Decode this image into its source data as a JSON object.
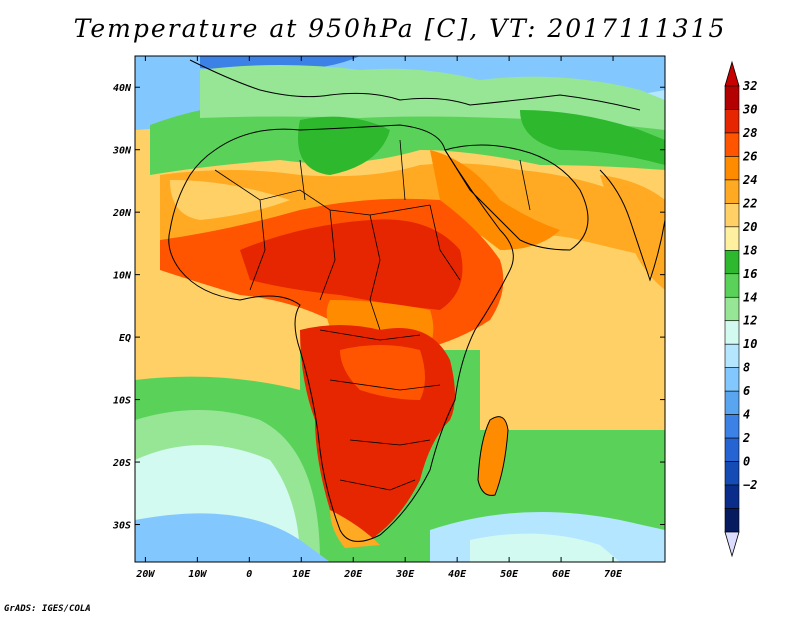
{
  "title": "Temperature at 950hPa [C], VT: 2017111315",
  "footer": "GrADS: IGES/COLA",
  "map": {
    "region": "Africa",
    "lon_range": [
      -22,
      80
    ],
    "lat_range": [
      -36,
      45
    ],
    "x_ticks": [
      "20W",
      "10W",
      "0",
      "10E",
      "20E",
      "30E",
      "40E",
      "50E",
      "60E",
      "70E"
    ],
    "y_ticks": [
      "40N",
      "30N",
      "20N",
      "10N",
      "EQ",
      "10S",
      "20S",
      "30S"
    ]
  },
  "colorbar": {
    "labels": [
      "32",
      "30",
      "28",
      "26",
      "24",
      "22",
      "20",
      "18",
      "16",
      "14",
      "12",
      "10",
      "8",
      "6",
      "4",
      "2",
      "0",
      "−2"
    ],
    "colors": [
      "#b30000",
      "#e62600",
      "#ff5500",
      "#ff8c00",
      "#ffaa22",
      "#ffd066",
      "#fff0a0",
      "#2db82d",
      "#5ad25a",
      "#96e696",
      "#d2faf0",
      "#b4e6ff",
      "#82c8ff",
      "#5aa5f0",
      "#3c82e6",
      "#2564d2",
      "#144bb4",
      "#0a2d8c",
      "#061a60"
    ],
    "top_triangle": "#c80000",
    "bottom_triangle": "#dcdcff"
  }
}
